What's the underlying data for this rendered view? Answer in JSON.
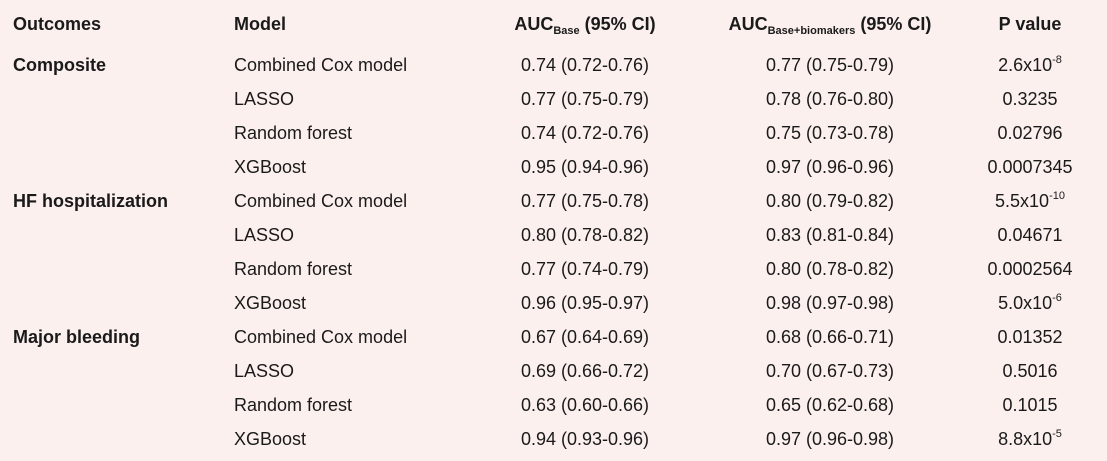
{
  "header": {
    "outcomes": "Outcomes",
    "model": "Model",
    "auc_base_main": "AUC",
    "auc_base_sub": "Base",
    "auc_base_ci": " (95% CI)",
    "auc_bio_main": "AUC",
    "auc_bio_sub": "Base+biomakers",
    "auc_bio_ci": " (95% CI)",
    "pvalue": "P value"
  },
  "rows": [
    {
      "outcome": "Composite",
      "model": "Combined Cox model",
      "auc_base": "0.74 (0.72-0.76)",
      "auc_bio": "0.77 (0.75-0.79)",
      "p_base": "2.6x10",
      "p_exp": "-8"
    },
    {
      "outcome": "",
      "model": "LASSO",
      "auc_base": "0.77 (0.75-0.79)",
      "auc_bio": "0.78 (0.76-0.80)",
      "p_base": "0.3235",
      "p_exp": ""
    },
    {
      "outcome": "",
      "model": "Random forest",
      "auc_base": "0.74 (0.72-0.76)",
      "auc_bio": "0.75 (0.73-0.78)",
      "p_base": "0.02796",
      "p_exp": ""
    },
    {
      "outcome": "",
      "model": "XGBoost",
      "auc_base": "0.95 (0.94-0.96)",
      "auc_bio": "0.97 (0.96-0.96)",
      "p_base": "0.0007345",
      "p_exp": ""
    },
    {
      "outcome": "HF hospitalization",
      "model": "Combined Cox model",
      "auc_base": "0.77 (0.75-0.78)",
      "auc_bio": "0.80 (0.79-0.82)",
      "p_base": "5.5x10",
      "p_exp": "-10"
    },
    {
      "outcome": "",
      "model": "LASSO",
      "auc_base": "0.80 (0.78-0.82)",
      "auc_bio": "0.83 (0.81-0.84)",
      "p_base": "0.04671",
      "p_exp": ""
    },
    {
      "outcome": "",
      "model": "Random forest",
      "auc_base": "0.77 (0.74-0.79)",
      "auc_bio": "0.80 (0.78-0.82)",
      "p_base": "0.0002564",
      "p_exp": ""
    },
    {
      "outcome": "",
      "model": "XGBoost",
      "auc_base": "0.96 (0.95-0.97)",
      "auc_bio": "0.98 (0.97-0.98)",
      "p_base": "5.0x10",
      "p_exp": "-6"
    },
    {
      "outcome": "Major bleeding",
      "model": "Combined Cox model",
      "auc_base": "0.67 (0.64-0.69)",
      "auc_bio": "0.68 (0.66-0.71)",
      "p_base": "0.01352",
      "p_exp": ""
    },
    {
      "outcome": "",
      "model": "LASSO",
      "auc_base": "0.69 (0.66-0.72)",
      "auc_bio": "0.70 (0.67-0.73)",
      "p_base": "0.5016",
      "p_exp": ""
    },
    {
      "outcome": "",
      "model": "Random forest",
      "auc_base": "0.63 (0.60-0.66)",
      "auc_bio": "0.65 (0.62-0.68)",
      "p_base": "0.1015",
      "p_exp": ""
    },
    {
      "outcome": "",
      "model": "XGBoost",
      "auc_base": "0.94 (0.93-0.96)",
      "auc_bio": "0.97 (0.96-0.98)",
      "p_base": "8.8x10",
      "p_exp": "-5"
    }
  ]
}
